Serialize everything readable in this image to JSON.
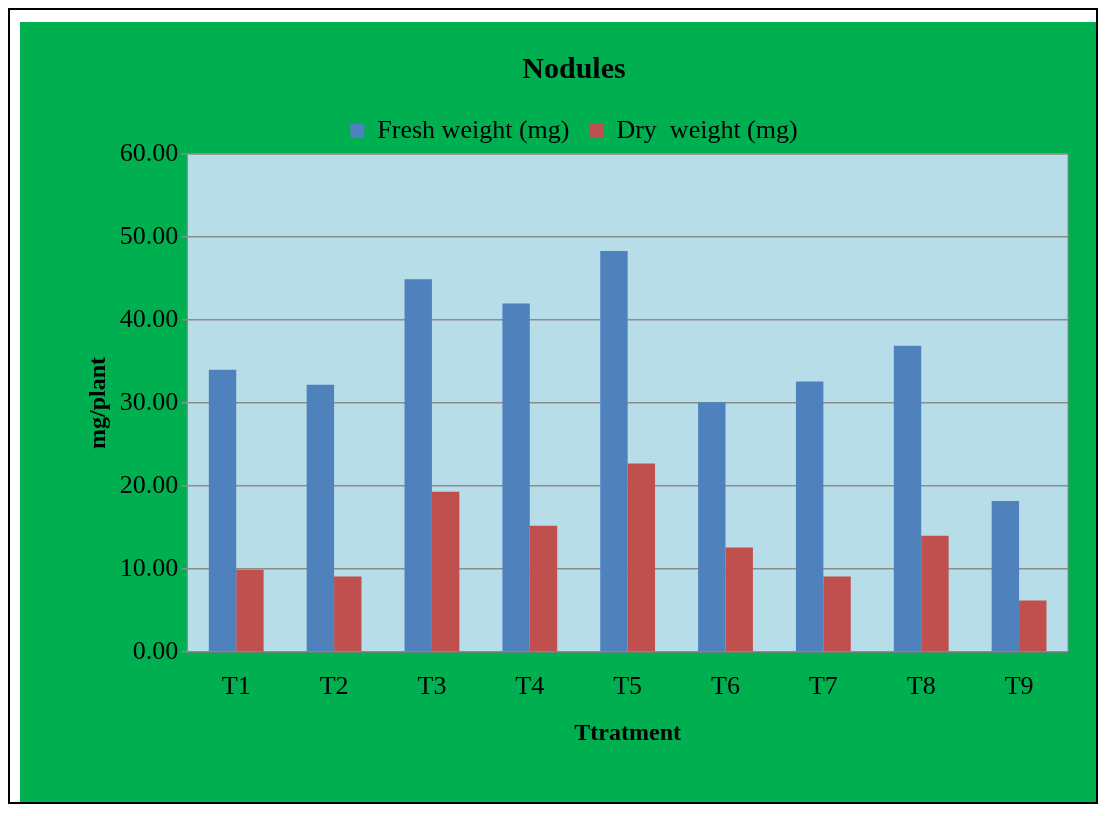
{
  "chart_data": {
    "type": "bar",
    "title": "Nodules",
    "xlabel": "Ttratment",
    "ylabel": "mg/plant",
    "categories": [
      "T1",
      "T2",
      "T3",
      "T4",
      "T5",
      "T6",
      "T7",
      "T8",
      "T9"
    ],
    "series": [
      {
        "name": "Fresh weight (mg)",
        "color": "#4f81bd",
        "values": [
          34.0,
          32.2,
          44.9,
          42.0,
          48.3,
          30.1,
          32.6,
          36.9,
          18.2
        ]
      },
      {
        "name": "Dry  weight (mg)",
        "color": "#c0504d",
        "values": [
          9.9,
          9.1,
          19.3,
          15.2,
          22.7,
          12.6,
          9.1,
          14.0,
          6.2
        ]
      }
    ],
    "ylim": [
      0,
      60
    ],
    "yticks": [
      {
        "value": 0,
        "label": "0.00"
      },
      {
        "value": 10,
        "label": "10.00"
      },
      {
        "value": 20,
        "label": "20.00"
      },
      {
        "value": 30,
        "label": "30.00"
      },
      {
        "value": 40,
        "label": "40.00"
      },
      {
        "value": 50,
        "label": "50.00"
      },
      {
        "value": 60,
        "label": "60.00"
      }
    ],
    "grid": "y",
    "legend": "top"
  }
}
